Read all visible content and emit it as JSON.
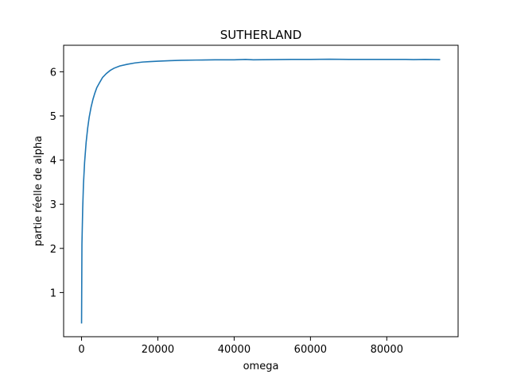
{
  "chart_data": {
    "type": "line",
    "title": "SUTHERLAND",
    "xlabel": "omega",
    "ylabel": "partie réelle de alpha",
    "xlim": [
      -4700,
      98700
    ],
    "ylim": [
      0.0,
      6.6
    ],
    "xticks": [
      0,
      20000,
      40000,
      60000,
      80000
    ],
    "yticks": [
      1,
      2,
      3,
      4,
      5,
      6
    ],
    "grid": false,
    "color": "#1f77b4",
    "series": [
      {
        "x": [
          0,
          100,
          300,
          500,
          800,
          1200,
          1600,
          2000,
          2500,
          3000,
          3500,
          4000,
          4700,
          5500,
          6500,
          7500,
          8500,
          10000,
          12000,
          14000,
          16000,
          18000,
          20000,
          23000,
          26000,
          30000,
          35000,
          40000,
          43000,
          45000,
          50000,
          55000,
          60000,
          65000,
          70000,
          75000,
          80000,
          85000,
          87000,
          90000,
          94000
        ],
        "y": [
          0.3,
          2.1,
          2.9,
          3.45,
          3.95,
          4.4,
          4.72,
          4.97,
          5.2,
          5.38,
          5.52,
          5.64,
          5.75,
          5.87,
          5.96,
          6.03,
          6.08,
          6.13,
          6.17,
          6.2,
          6.22,
          6.23,
          6.24,
          6.25,
          6.26,
          6.265,
          6.27,
          6.27,
          6.28,
          6.27,
          6.275,
          6.28,
          6.28,
          6.285,
          6.28,
          6.28,
          6.28,
          6.28,
          6.275,
          6.28,
          6.275
        ]
      }
    ]
  }
}
